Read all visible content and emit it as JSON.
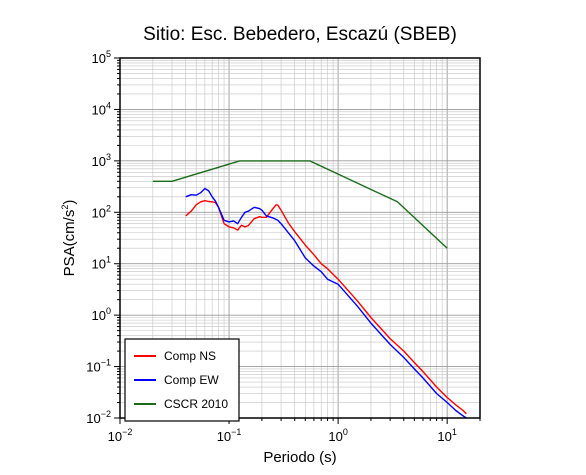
{
  "chart_data": {
    "type": "line",
    "title": "Sitio: Esc. Bebedero, Escazú (SBEB)",
    "xlabel": "Periodo (s)",
    "ylabel": {
      "base": "PSA(cm/s",
      "exp": "2",
      "close": ")"
    },
    "xscale": "log",
    "yscale": "log",
    "xlim": [
      0.01,
      20
    ],
    "ylim": [
      0.01,
      100000
    ],
    "grid": true,
    "legend_position": "bottom-left",
    "x_ticks": [
      {
        "base": "10",
        "exp": "−2",
        "value": 0.01
      },
      {
        "base": "10",
        "exp": "−1",
        "value": 0.1
      },
      {
        "base": "10",
        "exp": "0",
        "value": 1
      },
      {
        "base": "10",
        "exp": "1",
        "value": 10
      }
    ],
    "y_ticks": [
      {
        "base": "10",
        "exp": "−2",
        "value": 0.01
      },
      {
        "base": "10",
        "exp": "−1",
        "value": 0.1
      },
      {
        "base": "10",
        "exp": "0",
        "value": 1
      },
      {
        "base": "10",
        "exp": "1",
        "value": 10
      },
      {
        "base": "10",
        "exp": "2",
        "value": 100
      },
      {
        "base": "10",
        "exp": "3",
        "value": 1000
      },
      {
        "base": "10",
        "exp": "4",
        "value": 10000
      },
      {
        "base": "10",
        "exp": "5",
        "value": 100000
      }
    ],
    "series": [
      {
        "name": "Comp NS",
        "color": "#ff0000",
        "x": [
          0.04,
          0.045,
          0.05,
          0.055,
          0.06,
          0.065,
          0.07,
          0.075,
          0.08,
          0.09,
          0.1,
          0.11,
          0.12,
          0.13,
          0.14,
          0.15,
          0.17,
          0.19,
          0.2,
          0.22,
          0.25,
          0.27,
          0.28,
          0.3,
          0.35,
          0.4,
          0.5,
          0.6,
          0.7,
          0.8,
          1.0,
          1.5,
          2.0,
          3.0,
          4.0,
          5.0,
          6.0,
          8.0,
          10.0,
          12.0,
          14.0,
          15.0
        ],
        "y": [
          85,
          105,
          140,
          160,
          168,
          162,
          160,
          155,
          125,
          60,
          52,
          50,
          45,
          56,
          52,
          55,
          75,
          82,
          80,
          80,
          115,
          140,
          138,
          110,
          62,
          42,
          23,
          15,
          10,
          8,
          5,
          1.9,
          0.9,
          0.35,
          0.2,
          0.12,
          0.08,
          0.04,
          0.025,
          0.018,
          0.014,
          0.012
        ]
      },
      {
        "name": "Comp EW",
        "color": "#0000ff",
        "x": [
          0.04,
          0.045,
          0.05,
          0.055,
          0.06,
          0.065,
          0.07,
          0.075,
          0.08,
          0.09,
          0.1,
          0.11,
          0.12,
          0.13,
          0.14,
          0.15,
          0.17,
          0.19,
          0.2,
          0.22,
          0.25,
          0.28,
          0.3,
          0.35,
          0.4,
          0.5,
          0.6,
          0.7,
          0.8,
          1.0,
          1.5,
          2.0,
          3.0,
          4.0,
          5.0,
          6.0,
          8.0,
          10.0,
          12.0,
          14.0,
          15.0
        ],
        "y": [
          200,
          220,
          215,
          240,
          290,
          260,
          200,
          165,
          125,
          70,
          65,
          68,
          60,
          80,
          100,
          105,
          125,
          118,
          110,
          85,
          78,
          70,
          60,
          40,
          28,
          13,
          9,
          7,
          5,
          4,
          1.5,
          0.7,
          0.27,
          0.15,
          0.09,
          0.06,
          0.03,
          0.02,
          0.014,
          0.011,
          0.01
        ]
      },
      {
        "name": "CSCR 2010",
        "color": "#1a6b1a",
        "x": [
          0.02,
          0.03,
          0.125,
          0.55,
          3.5,
          10.0
        ],
        "y": [
          400,
          400,
          1000,
          1000,
          160,
          20
        ]
      }
    ]
  }
}
